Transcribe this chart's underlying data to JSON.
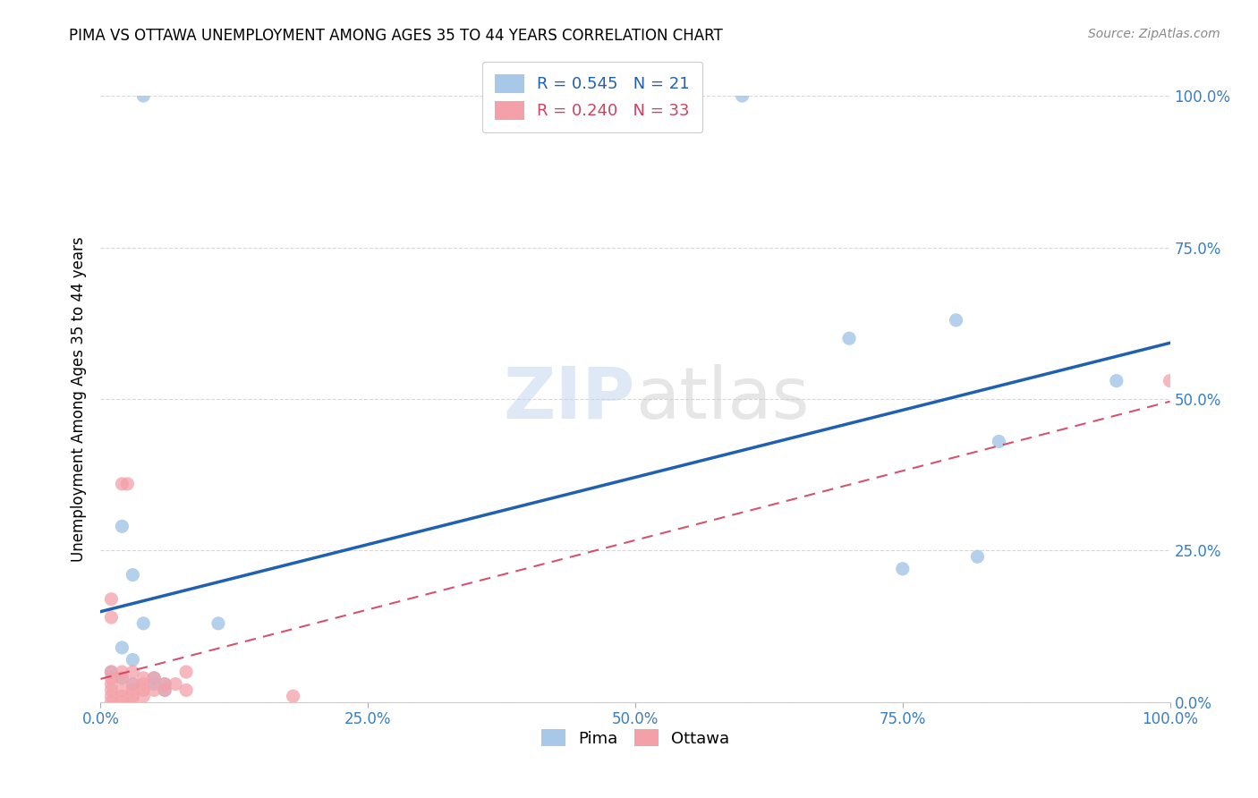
{
  "title": "PIMA VS OTTAWA UNEMPLOYMENT AMONG AGES 35 TO 44 YEARS CORRELATION CHART",
  "source": "Source: ZipAtlas.com",
  "ylabel": "Unemployment Among Ages 35 to 44 years",
  "xlim": [
    0.0,
    1.0
  ],
  "ylim": [
    0.0,
    1.0
  ],
  "xtick_vals": [
    0.0,
    0.25,
    0.5,
    0.75,
    1.0
  ],
  "xtick_labels": [
    "0.0%",
    "25.0%",
    "50.0%",
    "75.0%",
    "100.0%"
  ],
  "ytick_vals": [
    0.0,
    0.25,
    0.5,
    0.75,
    1.0
  ],
  "ytick_labels": [
    "",
    "",
    "",
    "",
    ""
  ],
  "right_ytick_vals": [
    0.0,
    0.25,
    0.5,
    0.75,
    1.0
  ],
  "right_ytick_labels": [
    "0.0%",
    "25.0%",
    "50.0%",
    "75.0%",
    "100.0%"
  ],
  "pima_color": "#a8c8e8",
  "ottawa_color": "#f4a0a8",
  "pima_R": 0.545,
  "pima_N": 21,
  "ottawa_R": 0.24,
  "ottawa_N": 33,
  "legend_label_pima": "Pima",
  "legend_label_ottawa": "Ottawa",
  "pima_scatter": [
    [
      0.04,
      1.0
    ],
    [
      0.6,
      1.0
    ],
    [
      0.02,
      0.29
    ],
    [
      0.03,
      0.21
    ],
    [
      0.04,
      0.13
    ],
    [
      0.02,
      0.09
    ],
    [
      0.03,
      0.07
    ],
    [
      0.01,
      0.05
    ],
    [
      0.02,
      0.04
    ],
    [
      0.05,
      0.04
    ],
    [
      0.03,
      0.03
    ],
    [
      0.06,
      0.03
    ],
    [
      0.11,
      0.13
    ],
    [
      0.05,
      0.03
    ],
    [
      0.06,
      0.02
    ],
    [
      0.7,
      0.6
    ],
    [
      0.8,
      0.63
    ],
    [
      0.84,
      0.43
    ],
    [
      0.75,
      0.22
    ],
    [
      0.82,
      0.24
    ],
    [
      0.95,
      0.53
    ]
  ],
  "ottawa_scatter": [
    [
      0.01,
      0.17
    ],
    [
      0.01,
      0.14
    ],
    [
      0.02,
      0.36
    ],
    [
      0.025,
      0.36
    ],
    [
      0.01,
      0.05
    ],
    [
      0.02,
      0.05
    ],
    [
      0.01,
      0.04
    ],
    [
      0.02,
      0.04
    ],
    [
      0.01,
      0.03
    ],
    [
      0.03,
      0.03
    ],
    [
      0.04,
      0.03
    ],
    [
      0.03,
      0.05
    ],
    [
      0.04,
      0.04
    ],
    [
      0.05,
      0.04
    ],
    [
      0.06,
      0.03
    ],
    [
      0.07,
      0.03
    ],
    [
      0.03,
      0.02
    ],
    [
      0.02,
      0.02
    ],
    [
      0.01,
      0.02
    ],
    [
      0.01,
      0.01
    ],
    [
      0.02,
      0.01
    ],
    [
      0.03,
      0.01
    ],
    [
      0.04,
      0.02
    ],
    [
      0.05,
      0.02
    ],
    [
      0.08,
      0.05
    ],
    [
      0.08,
      0.02
    ],
    [
      0.06,
      0.02
    ],
    [
      0.04,
      0.01
    ],
    [
      0.03,
      0.0
    ],
    [
      0.18,
      0.01
    ],
    [
      0.01,
      0.0
    ],
    [
      0.02,
      0.0
    ],
    [
      1.0,
      0.53
    ]
  ],
  "pima_line_color": "#2060b0",
  "ottawa_line_color": "#d04060",
  "background_color": "#ffffff",
  "watermark_text_zip": "ZIP",
  "watermark_text_atlas": "atlas",
  "marker_size": 120,
  "tick_color": "#3a7ebf",
  "grid_color": "#d8d8d8"
}
